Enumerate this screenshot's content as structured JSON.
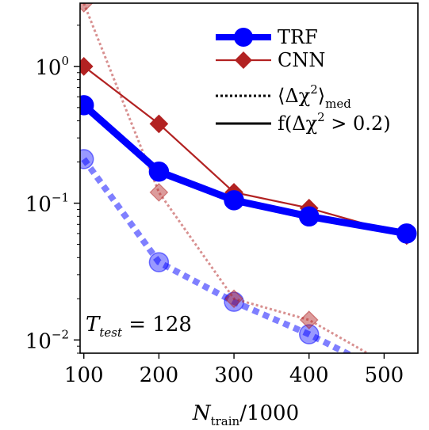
{
  "chart_data": {
    "type": "line",
    "xlabel": "N_train/1000",
    "xlabel_main": "N",
    "xlabel_sub": "train",
    "xlabel_rest": "/1000",
    "ylabel": "",
    "xscale": "linear",
    "yscale": "log",
    "xlim": [
      95,
      545
    ],
    "ylim": [
      0.008,
      2.9
    ],
    "x_ticks": [
      100,
      200,
      300,
      400,
      500
    ],
    "x_tick_labels": [
      "100",
      "200",
      "300",
      "400",
      "500"
    ],
    "y_ticks": [
      0.01,
      0.1,
      1
    ],
    "y_tick_base": "10",
    "y_tick_exponents": [
      "−2",
      "−1",
      "0"
    ],
    "grid": false,
    "legend_position": "top-right",
    "annotation": {
      "main": "T",
      "sub": "test",
      "rest": " = 128"
    },
    "series": [
      {
        "name": "TRF",
        "metric": "fraction",
        "color": "#0000ff",
        "marker": "circle",
        "line": "solid",
        "x": [
          100,
          200,
          300,
          400,
          530
        ],
        "y": [
          0.52,
          0.17,
          0.105,
          0.08,
          0.06
        ]
      },
      {
        "name": "CNN",
        "metric": "fraction",
        "color": "#b22222",
        "marker": "diamond",
        "line": "solid",
        "x": [
          100,
          200,
          300,
          400,
          530
        ],
        "y": [
          1.0,
          0.38,
          0.12,
          0.092,
          0.058
        ]
      },
      {
        "name": "",
        "metric": "median",
        "color": "#0000ff",
        "marker": "circle",
        "line": "dotted",
        "alpha": 0.5,
        "x": [
          100,
          200,
          300,
          400,
          530
        ],
        "y": [
          0.21,
          0.037,
          0.019,
          0.011,
          0.0048
        ]
      },
      {
        "name": "",
        "metric": "median",
        "color": "#b22222",
        "marker": "diamond",
        "line": "dotted",
        "alpha": 0.5,
        "x": [
          100,
          200,
          300,
          400,
          530
        ],
        "y": [
          2.9,
          0.12,
          0.02,
          0.014,
          0.0055
        ]
      }
    ],
    "legend": [
      {
        "label": "TRF",
        "color": "#0000ff",
        "marker": "circle",
        "line": "solid"
      },
      {
        "label": "CNN",
        "color": "#b22222",
        "marker": "diamond",
        "line": "solid"
      },
      {
        "label_pre": "⟨Δχ",
        "label_sup": "2",
        "label_post": "⟩",
        "label_sub": "med",
        "color": "#000000",
        "line": "dotted"
      },
      {
        "label_pre": "f(Δχ",
        "label_sup": "2",
        "label_post": " > 0.2)",
        "color": "#000000",
        "line": "solid"
      }
    ]
  }
}
